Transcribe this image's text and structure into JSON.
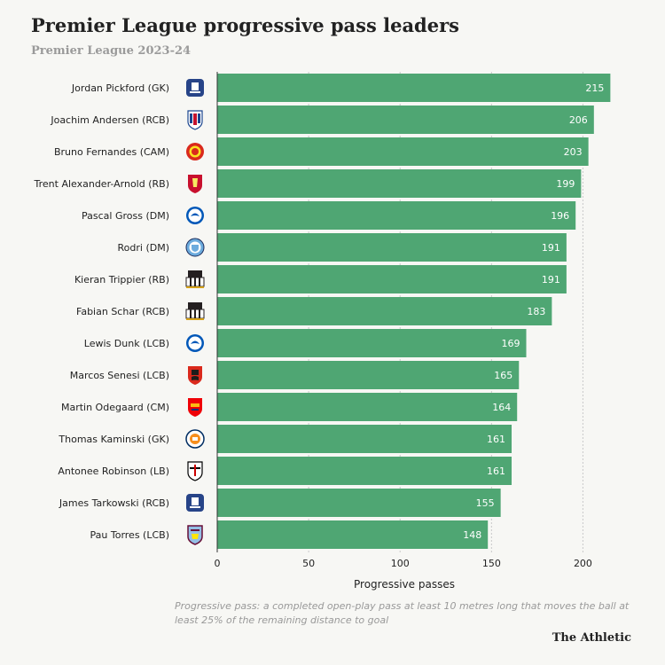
{
  "title": "Premier League progressive pass leaders",
  "subtitle": "Premier League 2023-24",
  "footnote": "Progressive pass: a completed open-play pass at least 10 metres long that moves the ball at least 25% of the remaining distance to goal",
  "brand": "The Athletic",
  "colors": {
    "bar": "#4fa673",
    "background": "#f7f7f4",
    "grid": "#c9c9c9"
  },
  "chart_data": {
    "type": "bar",
    "orientation": "horizontal",
    "title": "Premier League progressive pass leaders",
    "subtitle": "Premier League 2023-24",
    "xlabel": "Progressive passes",
    "ylabel": "",
    "xlim": [
      0,
      225
    ],
    "xticks": [
      0,
      50,
      100,
      150,
      200
    ],
    "grid": true,
    "categories": [
      "Jordan Pickford (GK)",
      "Joachim Andersen (RCB)",
      "Bruno Fernandes (CAM)",
      "Trent Alexander-Arnold (RB)",
      "Pascal Gross (DM)",
      "Rodri (DM)",
      "Kieran Trippier (RB)",
      "Fabian Schar (RCB)",
      "Lewis Dunk (LCB)",
      "Marcos Senesi (LCB)",
      "Martin Odegaard (CM)",
      "Thomas Kaminski (GK)",
      "Antonee Robinson (LB)",
      "James Tarkowski (RCB)",
      "Pau Torres (LCB)"
    ],
    "values": [
      215,
      206,
      203,
      199,
      196,
      191,
      191,
      183,
      169,
      165,
      164,
      161,
      161,
      155,
      148
    ],
    "club_badges": [
      "everton-badge-icon",
      "crystal-palace-badge-icon",
      "manchester-united-badge-icon",
      "liverpool-badge-icon",
      "brighton-badge-icon",
      "manchester-city-badge-icon",
      "newcastle-badge-icon",
      "newcastle-badge-icon",
      "brighton-badge-icon",
      "bournemouth-badge-icon",
      "arsenal-badge-icon",
      "luton-badge-icon",
      "fulham-badge-icon",
      "everton-badge-icon",
      "aston-villa-badge-icon"
    ]
  }
}
